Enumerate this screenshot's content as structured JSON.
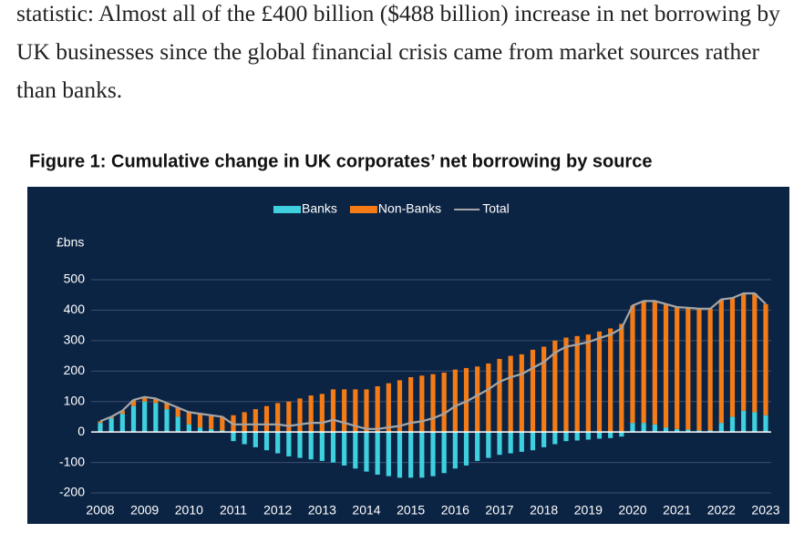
{
  "article": {
    "text": "statistic: Almost all of the £400 billion ($488 billion) increase in net borrowing by UK businesses since the global financial crisis came from market sources rather than banks."
  },
  "chart_data": {
    "type": "bar",
    "stacked": true,
    "title": "Figure 1:  Cumulative change in UK corporates’ net borrowing by source",
    "y_label": "£bns",
    "categories": [
      "2008",
      null,
      null,
      null,
      "2009",
      null,
      null,
      null,
      "2010",
      null,
      null,
      null,
      "2011",
      null,
      null,
      null,
      "2012",
      null,
      null,
      null,
      "2013",
      null,
      null,
      null,
      "2014",
      null,
      null,
      null,
      "2015",
      null,
      null,
      null,
      "2016",
      null,
      null,
      null,
      "2017",
      null,
      null,
      null,
      "2018",
      null,
      null,
      null,
      "2019",
      null,
      null,
      null,
      "2020",
      null,
      null,
      null,
      "2021",
      null,
      null,
      null,
      "2022",
      null,
      null,
      null,
      "2023"
    ],
    "series": [
      {
        "name": "Banks",
        "color": "#3fd0df",
        "type": "bar",
        "values": [
          30,
          45,
          60,
          85,
          100,
          95,
          75,
          50,
          25,
          15,
          10,
          5,
          -30,
          -40,
          -50,
          -60,
          -70,
          -80,
          -85,
          -90,
          -95,
          -100,
          -110,
          -120,
          -130,
          -140,
          -145,
          -150,
          -150,
          -150,
          -145,
          -135,
          -120,
          -110,
          -95,
          -85,
          -75,
          -70,
          -65,
          -60,
          -50,
          -40,
          -30,
          -28,
          -25,
          -22,
          -20,
          -15,
          30,
          30,
          25,
          15,
          10,
          8,
          5,
          5,
          30,
          50,
          70,
          65,
          55
        ]
      },
      {
        "name": "Non-Banks",
        "color": "#f47b16",
        "type": "bar",
        "values": [
          5,
          5,
          10,
          20,
          15,
          15,
          20,
          30,
          40,
          45,
          45,
          45,
          55,
          65,
          75,
          85,
          95,
          100,
          110,
          120,
          125,
          140,
          140,
          140,
          140,
          150,
          160,
          170,
          180,
          185,
          190,
          195,
          205,
          210,
          215,
          225,
          240,
          250,
          255,
          270,
          280,
          300,
          310,
          315,
          320,
          330,
          340,
          355,
          385,
          400,
          405,
          405,
          400,
          400,
          400,
          400,
          405,
          390,
          385,
          390,
          365
        ]
      },
      {
        "name": "Total",
        "color": "#a6a6a6",
        "type": "line",
        "values": [
          35,
          50,
          70,
          105,
          115,
          110,
          95,
          80,
          65,
          60,
          55,
          50,
          25,
          25,
          25,
          25,
          25,
          20,
          25,
          30,
          30,
          40,
          30,
          20,
          10,
          10,
          15,
          20,
          30,
          35,
          45,
          60,
          85,
          100,
          120,
          140,
          165,
          180,
          190,
          210,
          230,
          260,
          280,
          287,
          295,
          308,
          320,
          340,
          415,
          430,
          430,
          420,
          410,
          408,
          405,
          405,
          435,
          440,
          455,
          455,
          420
        ]
      }
    ],
    "ylim": [
      -200,
      500
    ],
    "yticks": [
      -200,
      -100,
      0,
      100,
      200,
      300,
      400,
      500
    ],
    "grid": true,
    "background": "#0c2444"
  }
}
